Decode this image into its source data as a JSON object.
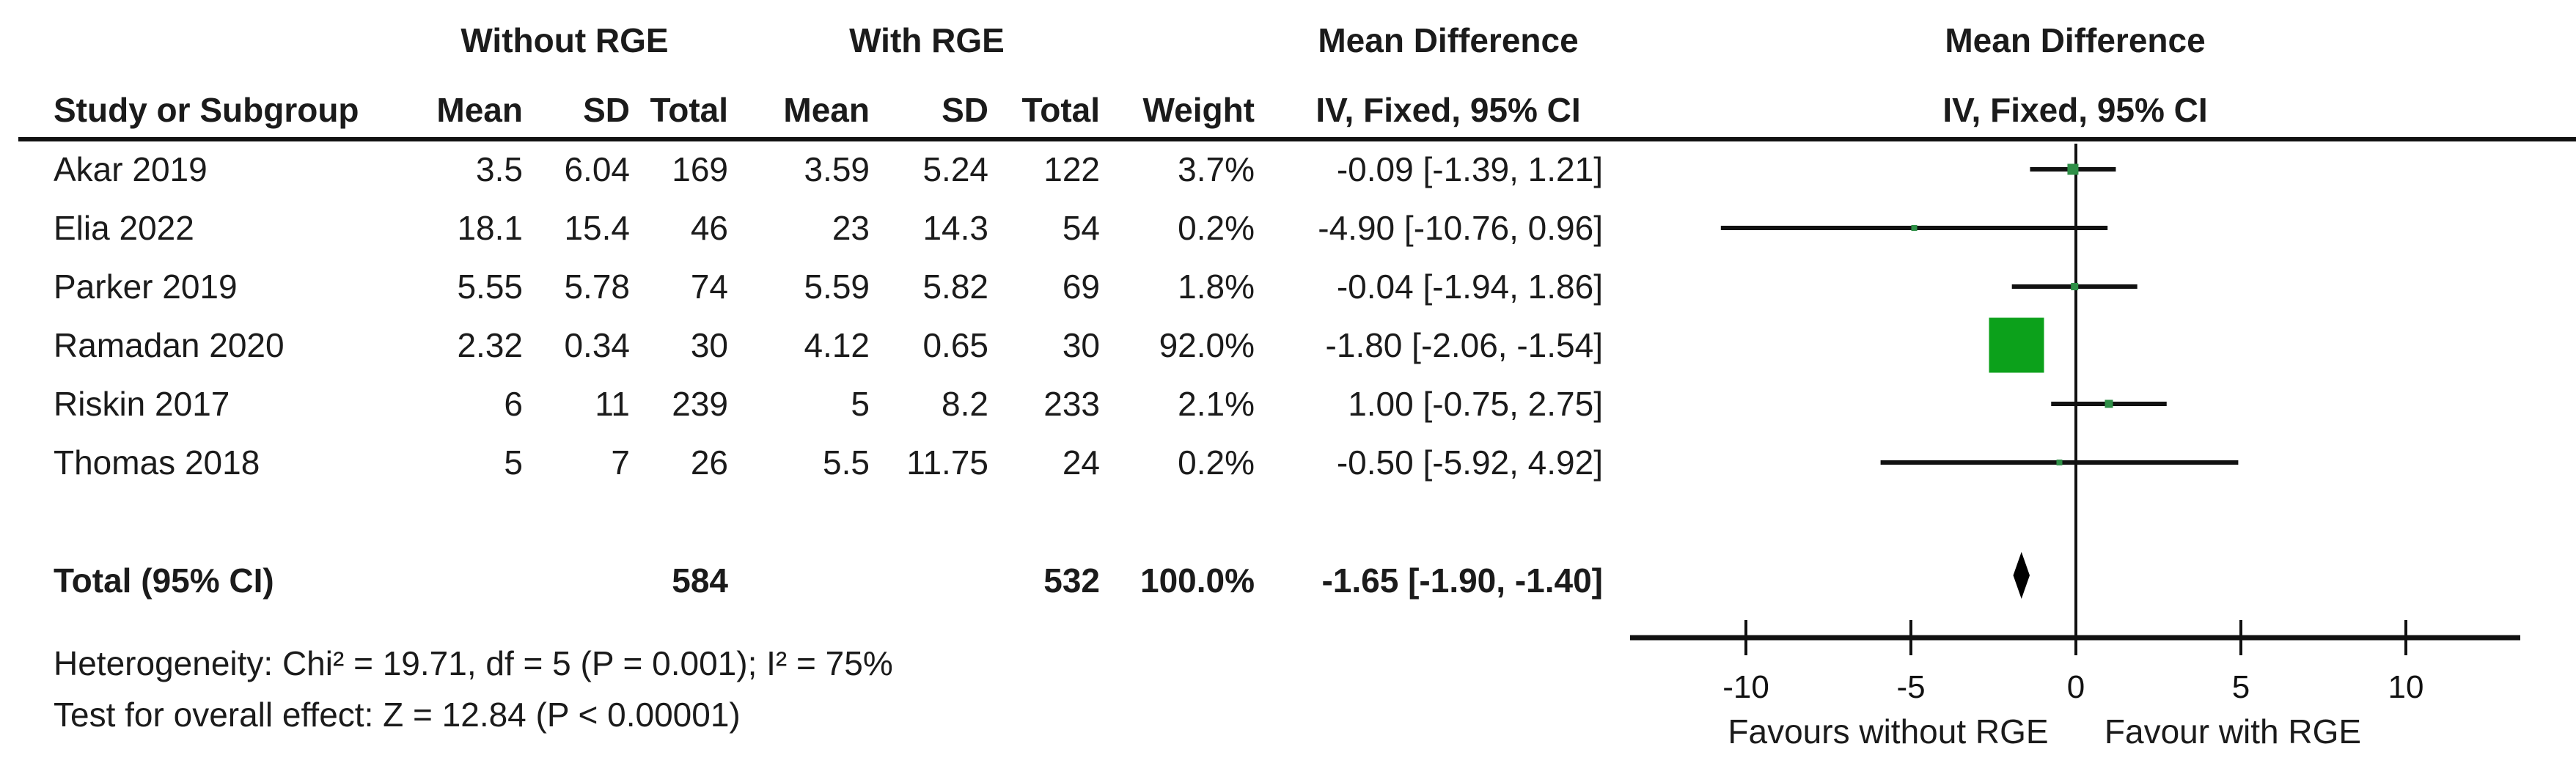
{
  "table": {
    "group_headers": {
      "without": "Without RGE",
      "with": "With RGE",
      "md_left_line1": "Mean Difference",
      "md_left_line2": "IV, Fixed, 95% CI",
      "md_right_line1": "Mean Difference",
      "md_right_line2": "IV, Fixed, 95% CI"
    },
    "columns": {
      "study": "Study or Subgroup",
      "mean": "Mean",
      "sd": "SD",
      "total": "Total",
      "weight": "Weight"
    },
    "rows": [
      {
        "study": "Akar 2019",
        "mean1": "3.5",
        "sd1": "6.04",
        "total1": "169",
        "mean2": "3.59",
        "sd2": "5.24",
        "total2": "122",
        "weight": "3.7%",
        "ci": "-0.09 [-1.39, 1.21]"
      },
      {
        "study": "Elia 2022",
        "mean1": "18.1",
        "sd1": "15.4",
        "total1": "46",
        "mean2": "23",
        "sd2": "14.3",
        "total2": "54",
        "weight": "0.2%",
        "ci": "-4.90 [-10.76, 0.96]"
      },
      {
        "study": "Parker 2019",
        "mean1": "5.55",
        "sd1": "5.78",
        "total1": "74",
        "mean2": "5.59",
        "sd2": "5.82",
        "total2": "69",
        "weight": "1.8%",
        "ci": "-0.04 [-1.94, 1.86]"
      },
      {
        "study": "Ramadan 2020",
        "mean1": "2.32",
        "sd1": "0.34",
        "total1": "30",
        "mean2": "4.12",
        "sd2": "0.65",
        "total2": "30",
        "weight": "92.0%",
        "ci": "-1.80 [-2.06, -1.54]"
      },
      {
        "study": "Riskin 2017",
        "mean1": "6",
        "sd1": "11",
        "total1": "239",
        "mean2": "5",
        "sd2": "8.2",
        "total2": "233",
        "weight": "2.1%",
        "ci": "1.00 [-0.75, 2.75]"
      },
      {
        "study": "Thomas 2018",
        "mean1": "5",
        "sd1": "7",
        "total1": "26",
        "mean2": "5.5",
        "sd2": "11.75",
        "total2": "24",
        "weight": "0.2%",
        "ci": "-0.50 [-5.92, 4.92]"
      }
    ],
    "total_row": {
      "label": "Total (95% CI)",
      "total1": "584",
      "total2": "532",
      "weight": "100.0%",
      "ci": "-1.65 [-1.90, -1.40]"
    },
    "footnotes": {
      "heterogeneity": "Heterogeneity: Chi² = 19.71, df = 5 (P = 0.001); I² = 75%",
      "overall_effect": "Test for overall effect: Z = 12.84 (P < 0.00001)"
    }
  },
  "chart_data": {
    "type": "forest",
    "effect_measure": "Mean Difference IV, Fixed, 95% CI",
    "x_axis": {
      "ticks": [
        -10,
        -5,
        0,
        5,
        10
      ],
      "range": [
        -13.5,
        13.5
      ],
      "label_left": "Favours without RGE",
      "label_right": "Favour with RGE"
    },
    "studies": [
      {
        "name": "Akar 2019",
        "md": -0.09,
        "ci_low": -1.39,
        "ci_high": 1.21,
        "weight_pct": 3.7
      },
      {
        "name": "Elia 2022",
        "md": -4.9,
        "ci_low": -10.76,
        "ci_high": 0.96,
        "weight_pct": 0.2
      },
      {
        "name": "Parker 2019",
        "md": -0.04,
        "ci_low": -1.94,
        "ci_high": 1.86,
        "weight_pct": 1.8
      },
      {
        "name": "Ramadan 2020",
        "md": -1.8,
        "ci_low": -2.06,
        "ci_high": -1.54,
        "weight_pct": 92.0
      },
      {
        "name": "Riskin 2017",
        "md": 1.0,
        "ci_low": -0.75,
        "ci_high": 2.75,
        "weight_pct": 2.1
      },
      {
        "name": "Thomas 2018",
        "md": -0.5,
        "ci_low": -5.92,
        "ci_high": 4.92,
        "weight_pct": 0.2
      }
    ],
    "total": {
      "md": -1.65,
      "ci_low": -1.9,
      "ci_high": -1.4,
      "weight_pct": 100.0
    },
    "colors": {
      "marker_green": "#0CA11B",
      "marker_green_dark": "#2F8F47",
      "ink": "#111111"
    }
  }
}
